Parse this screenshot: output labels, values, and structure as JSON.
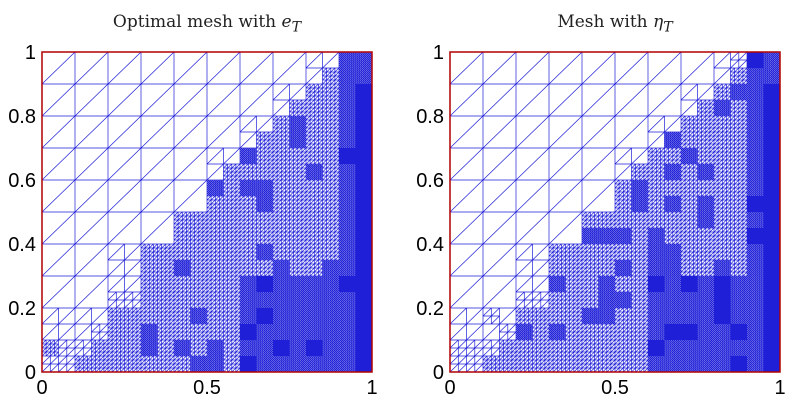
{
  "panels": [
    {
      "title_text": "Optimal mesh with ",
      "title_symbol": "e",
      "title_subscript": "T",
      "x_ticks": [
        "0",
        "0.5",
        "1"
      ],
      "y_ticks": [
        "0",
        "0.2",
        "0.4",
        "0.6",
        "0.8",
        "1"
      ]
    },
    {
      "title_text": "Mesh with ",
      "title_symbol": "η",
      "title_subscript": "T",
      "x_ticks": [
        "0",
        "0.5",
        "1"
      ],
      "y_ticks": [
        "0",
        "0.2",
        "0.4",
        "0.6",
        "0.8",
        "1"
      ]
    }
  ],
  "colors": {
    "mesh": "#1f1fd8",
    "border": "#b00000"
  }
}
